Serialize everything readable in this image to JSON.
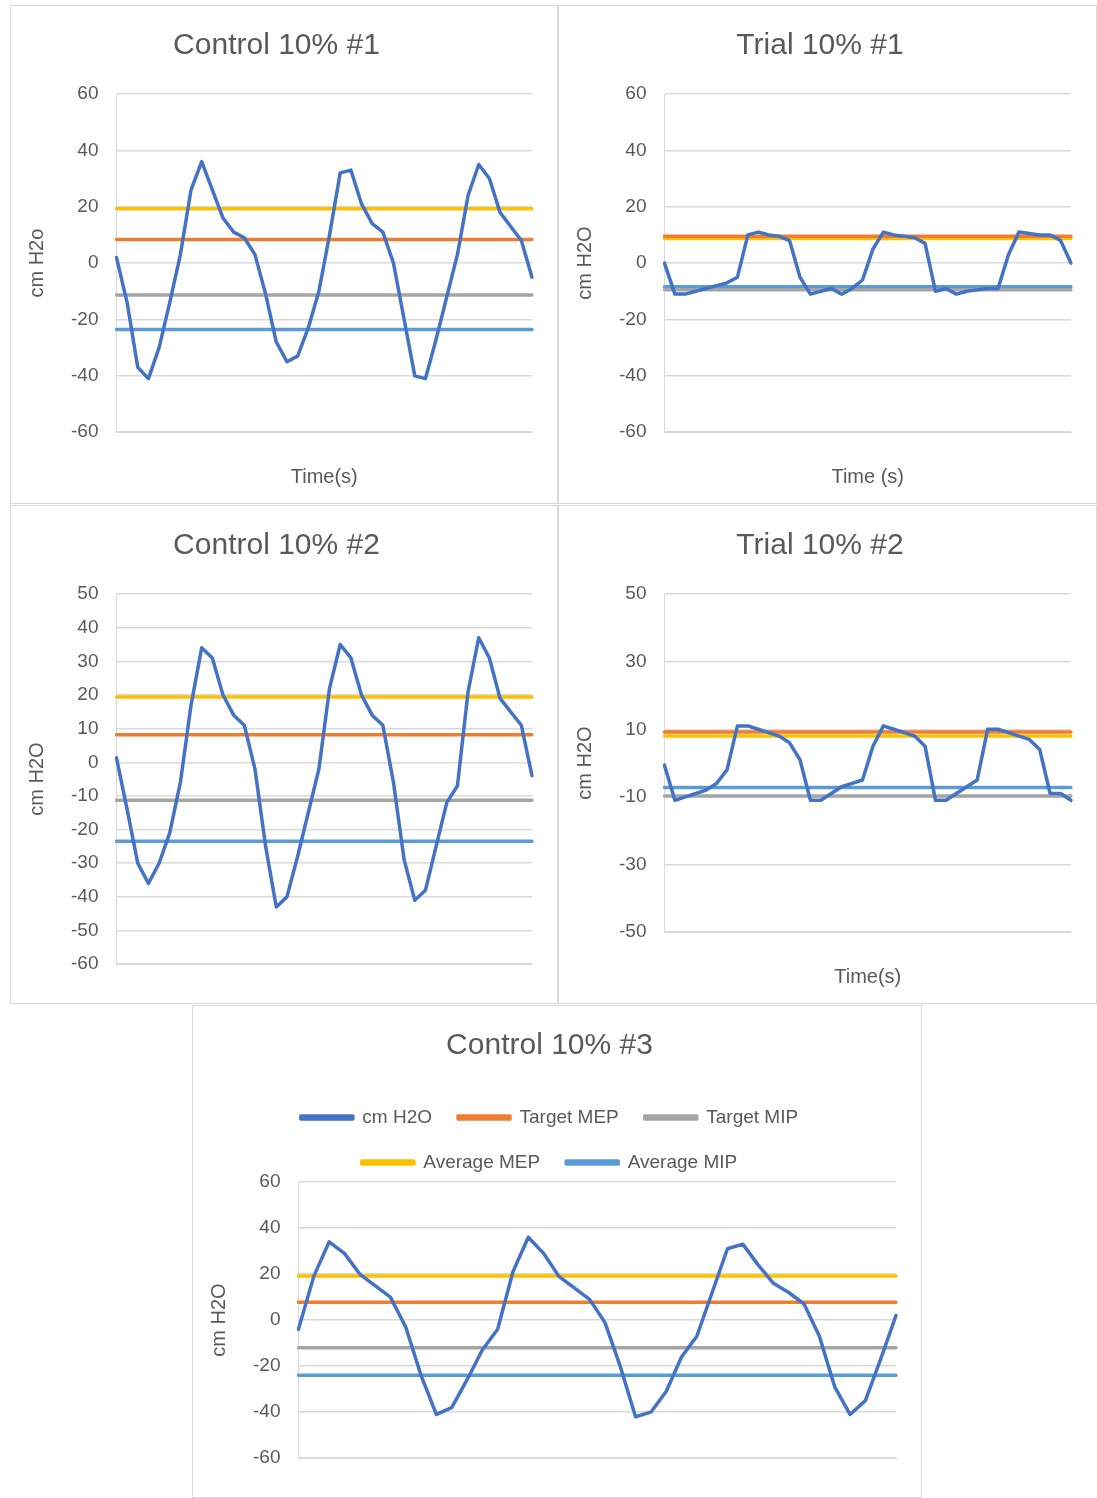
{
  "chart_data": [
    {
      "type": "line",
      "title": "Control 10% #1",
      "xlabel": "Time(s)",
      "ylabel": "cm H2o",
      "ylim": [
        -60,
        60
      ],
      "yticks": [
        -60,
        -40,
        -20,
        0,
        20,
        40,
        60
      ],
      "grid": "y",
      "legend": false,
      "categories": [
        null,
        null,
        null,
        null,
        null,
        null,
        null,
        null,
        null,
        null,
        null,
        null,
        null,
        null,
        null,
        null,
        null,
        null,
        null,
        null,
        null,
        null,
        null,
        null,
        null,
        null,
        null,
        null,
        null,
        null,
        null,
        null,
        null,
        null,
        null,
        null,
        null,
        null,
        null,
        null
      ],
      "series": [
        {
          "color": "#4472c4",
          "values": [
            2,
            -14,
            -37,
            -41,
            -30,
            -14,
            3,
            26,
            36,
            26,
            16,
            11,
            9,
            3,
            -11,
            -28,
            -35,
            -33,
            -23,
            -10,
            10,
            32,
            33,
            21,
            14,
            11,
            0,
            -20,
            -40,
            -41,
            -27,
            -12,
            3,
            24,
            35,
            30,
            18,
            13,
            8,
            -5
          ]
        },
        {
          "color": "#ed7d31",
          "values": [
            8.4,
            8.4,
            8.4,
            8.4,
            8.4,
            8.4,
            8.4,
            8.4,
            8.4,
            8.4,
            8.4,
            8.4,
            8.4,
            8.4,
            8.4,
            8.4,
            8.4,
            8.4,
            8.4,
            8.4,
            8.4,
            8.4,
            8.4,
            8.4,
            8.4,
            8.4,
            8.4,
            8.4,
            8.4,
            8.4,
            8.4,
            8.4,
            8.4,
            8.4,
            8.4,
            8.4,
            8.4,
            8.4,
            8.4,
            8.4
          ]
        },
        {
          "color": "#a5a5a5",
          "values": [
            -11.3,
            -11.3,
            -11.3,
            -11.3,
            -11.3,
            -11.3,
            -11.3,
            -11.3,
            -11.3,
            -11.3,
            -11.3,
            -11.3,
            -11.3,
            -11.3,
            -11.3,
            -11.3,
            -11.3,
            -11.3,
            -11.3,
            -11.3,
            -11.3,
            -11.3,
            -11.3,
            -11.3,
            -11.3,
            -11.3,
            -11.3,
            -11.3,
            -11.3,
            -11.3,
            -11.3,
            -11.3,
            -11.3,
            -11.3,
            -11.3,
            -11.3,
            -11.3,
            -11.3,
            -11.3,
            -11.3
          ]
        },
        {
          "color": "#ffc000",
          "values": [
            19.3,
            19.3,
            19.3,
            19.3,
            19.3,
            19.3,
            19.3,
            19.3,
            19.3,
            19.3,
            19.3,
            19.3,
            19.3,
            19.3,
            19.3,
            19.3,
            19.3,
            19.3,
            19.3,
            19.3,
            19.3,
            19.3,
            19.3,
            19.3,
            19.3,
            19.3,
            19.3,
            19.3,
            19.3,
            19.3,
            19.3,
            19.3,
            19.3,
            19.3,
            19.3,
            19.3,
            19.3,
            19.3,
            19.3,
            19.3
          ]
        },
        {
          "color": "#5b9bd5",
          "values": [
            -23.6,
            -23.6,
            -23.6,
            -23.6,
            -23.6,
            -23.6,
            -23.6,
            -23.6,
            -23.6,
            -23.6,
            -23.6,
            -23.6,
            -23.6,
            -23.6,
            -23.6,
            -23.6,
            -23.6,
            -23.6,
            -23.6,
            -23.6,
            -23.6,
            -23.6,
            -23.6,
            -23.6,
            -23.6,
            -23.6,
            -23.6,
            -23.6,
            -23.6,
            -23.6,
            -23.6,
            -23.6,
            -23.6,
            -23.6,
            -23.6,
            -23.6,
            -23.6,
            -23.6,
            -23.6,
            -23.6
          ]
        }
      ]
    },
    {
      "type": "line",
      "title": "Trial 10% #1",
      "xlabel": "Time (s)",
      "ylabel": "cm H2O",
      "ylim": [
        -60,
        60
      ],
      "yticks": [
        -60,
        -40,
        -20,
        0,
        20,
        40,
        60
      ],
      "grid": "y",
      "legend": false,
      "categories": [
        null,
        null,
        null,
        null,
        null,
        null,
        null,
        null,
        null,
        null,
        null,
        null,
        null,
        null,
        null,
        null,
        null,
        null,
        null,
        null,
        null,
        null,
        null,
        null,
        null,
        null,
        null,
        null,
        null,
        null,
        null,
        null,
        null,
        null,
        null,
        null,
        null,
        null,
        null,
        null
      ],
      "series": [
        {
          "color": "#4472c4",
          "values": [
            0,
            -11,
            -11,
            -10,
            -9,
            -8,
            -7,
            -5,
            10,
            11,
            10,
            9.5,
            8,
            -5,
            -11,
            -10,
            -9,
            -11,
            -9,
            -6,
            5,
            11,
            10,
            9.5,
            9,
            7,
            -10,
            -9,
            -11,
            -10,
            -9.5,
            -9,
            -9,
            3,
            11,
            10.5,
            10,
            10,
            8,
            0
          ]
        },
        {
          "color": "#ed7d31",
          "values": [
            9.5,
            9.5,
            9.5,
            9.5,
            9.5,
            9.5,
            9.5,
            9.5,
            9.5,
            9.5,
            9.5,
            9.5,
            9.5,
            9.5,
            9.5,
            9.5,
            9.5,
            9.5,
            9.5,
            9.5,
            9.5,
            9.5,
            9.5,
            9.5,
            9.5,
            9.5,
            9.5,
            9.5,
            9.5,
            9.5,
            9.5,
            9.5,
            9.5,
            9.5,
            9.5,
            9.5,
            9.5,
            9.5,
            9.5,
            9.5
          ]
        },
        {
          "color": "#a5a5a5",
          "values": [
            -9.5,
            -9.5,
            -9.5,
            -9.5,
            -9.5,
            -9.5,
            -9.5,
            -9.5,
            -9.5,
            -9.5,
            -9.5,
            -9.5,
            -9.5,
            -9.5,
            -9.5,
            -9.5,
            -9.5,
            -9.5,
            -9.5,
            -9.5,
            -9.5,
            -9.5,
            -9.5,
            -9.5,
            -9.5,
            -9.5,
            -9.5,
            -9.5,
            -9.5,
            -9.5,
            -9.5,
            -9.5,
            -9.5,
            -9.5,
            -9.5,
            -9.5,
            -9.5,
            -9.5,
            -9.5,
            -9.5
          ]
        },
        {
          "color": "#ffc000",
          "values": [
            8.7,
            8.7,
            8.7,
            8.7,
            8.7,
            8.7,
            8.7,
            8.7,
            8.7,
            8.7,
            8.7,
            8.7,
            8.7,
            8.7,
            8.7,
            8.7,
            8.7,
            8.7,
            8.7,
            8.7,
            8.7,
            8.7,
            8.7,
            8.7,
            8.7,
            8.7,
            8.7,
            8.7,
            8.7,
            8.7,
            8.7,
            8.7,
            8.7,
            8.7,
            8.7,
            8.7,
            8.7,
            8.7,
            8.7,
            8.7
          ]
        },
        {
          "color": "#5b9bd5",
          "values": [
            -8.4,
            -8.4,
            -8.4,
            -8.4,
            -8.4,
            -8.4,
            -8.4,
            -8.4,
            -8.4,
            -8.4,
            -8.4,
            -8.4,
            -8.4,
            -8.4,
            -8.4,
            -8.4,
            -8.4,
            -8.4,
            -8.4,
            -8.4,
            -8.4,
            -8.4,
            -8.4,
            -8.4,
            -8.4,
            -8.4,
            -8.4,
            -8.4,
            -8.4,
            -8.4,
            -8.4,
            -8.4,
            -8.4,
            -8.4,
            -8.4,
            -8.4,
            -8.4,
            -8.4,
            -8.4,
            -8.4
          ]
        }
      ]
    },
    {
      "type": "line",
      "title": "Control 10% #2",
      "ylabel": "cm H2O",
      "ylim": [
        -60,
        50
      ],
      "yticks": [
        -60,
        -50,
        -40,
        -30,
        -20,
        -10,
        0,
        10,
        20,
        30,
        40,
        50
      ],
      "grid": "y",
      "legend": false,
      "categories": [
        null,
        null,
        null,
        null,
        null,
        null,
        null,
        null,
        null,
        null,
        null,
        null,
        null,
        null,
        null,
        null,
        null,
        null,
        null,
        null,
        null,
        null,
        null,
        null,
        null,
        null,
        null,
        null,
        null,
        null,
        null,
        null,
        null,
        null,
        null,
        null,
        null,
        null,
        null,
        null
      ],
      "series": [
        {
          "color": "#4472c4",
          "values": [
            1.3,
            -14,
            -30,
            -36,
            -30,
            -21,
            -6,
            17,
            34,
            31,
            20,
            14,
            11,
            -2,
            -25,
            -43,
            -40,
            -28,
            -15,
            -2,
            22,
            35,
            31,
            20,
            14,
            11,
            -6,
            -29,
            -41,
            -38,
            -25,
            -12,
            -7,
            21,
            37,
            31,
            19,
            15,
            11,
            -4
          ]
        },
        {
          "color": "#ed7d31",
          "values": [
            8.2,
            8.2,
            8.2,
            8.2,
            8.2,
            8.2,
            8.2,
            8.2,
            8.2,
            8.2,
            8.2,
            8.2,
            8.2,
            8.2,
            8.2,
            8.2,
            8.2,
            8.2,
            8.2,
            8.2,
            8.2,
            8.2,
            8.2,
            8.2,
            8.2,
            8.2,
            8.2,
            8.2,
            8.2,
            8.2,
            8.2,
            8.2,
            8.2,
            8.2,
            8.2,
            8.2,
            8.2,
            8.2,
            8.2,
            8.2
          ]
        },
        {
          "color": "#a5a5a5",
          "values": [
            -11.3,
            -11.3,
            -11.3,
            -11.3,
            -11.3,
            -11.3,
            -11.3,
            -11.3,
            -11.3,
            -11.3,
            -11.3,
            -11.3,
            -11.3,
            -11.3,
            -11.3,
            -11.3,
            -11.3,
            -11.3,
            -11.3,
            -11.3,
            -11.3,
            -11.3,
            -11.3,
            -11.3,
            -11.3,
            -11.3,
            -11.3,
            -11.3,
            -11.3,
            -11.3,
            -11.3,
            -11.3,
            -11.3,
            -11.3,
            -11.3,
            -11.3,
            -11.3,
            -11.3,
            -11.3,
            -11.3
          ]
        },
        {
          "color": "#ffc000",
          "values": [
            19.4,
            19.4,
            19.4,
            19.4,
            19.4,
            19.4,
            19.4,
            19.4,
            19.4,
            19.4,
            19.4,
            19.4,
            19.4,
            19.4,
            19.4,
            19.4,
            19.4,
            19.4,
            19.4,
            19.4,
            19.4,
            19.4,
            19.4,
            19.4,
            19.4,
            19.4,
            19.4,
            19.4,
            19.4,
            19.4,
            19.4,
            19.4,
            19.4,
            19.4,
            19.4,
            19.4,
            19.4,
            19.4,
            19.4,
            19.4
          ]
        },
        {
          "color": "#5b9bd5",
          "values": [
            -23.5,
            -23.5,
            -23.5,
            -23.5,
            -23.5,
            -23.5,
            -23.5,
            -23.5,
            -23.5,
            -23.5,
            -23.5,
            -23.5,
            -23.5,
            -23.5,
            -23.5,
            -23.5,
            -23.5,
            -23.5,
            -23.5,
            -23.5,
            -23.5,
            -23.5,
            -23.5,
            -23.5,
            -23.5,
            -23.5,
            -23.5,
            -23.5,
            -23.5,
            -23.5,
            -23.5,
            -23.5,
            -23.5,
            -23.5,
            -23.5,
            -23.5,
            -23.5,
            -23.5,
            -23.5,
            -23.5
          ]
        }
      ]
    },
    {
      "type": "line",
      "title": "Trial 10% #2",
      "xlabel": "Time(s)",
      "ylabel": "cm H2O",
      "ylim": [
        -50,
        50
      ],
      "yticks": [
        -50,
        -30,
        -10,
        10,
        30,
        50
      ],
      "grid": "y",
      "legend": false,
      "categories": [
        null,
        null,
        null,
        null,
        null,
        null,
        null,
        null,
        null,
        null,
        null,
        null,
        null,
        null,
        null,
        null,
        null,
        null,
        null,
        null,
        null,
        null,
        null,
        null,
        null,
        null,
        null,
        null,
        null,
        null,
        null,
        null,
        null,
        null,
        null,
        null,
        null,
        null,
        null,
        null
      ],
      "series": [
        {
          "color": "#4472c4",
          "values": [
            -0.6,
            -11,
            -10,
            -9,
            -8,
            -6,
            -2,
            11,
            11,
            10,
            9,
            8,
            6,
            1,
            -11,
            -11,
            -9,
            -7,
            -6,
            -5,
            5,
            11,
            10,
            9,
            8,
            5,
            -11,
            -11,
            -9,
            -7,
            -5,
            10,
            10,
            9,
            8,
            7,
            4,
            -9,
            -9,
            -11
          ]
        },
        {
          "color": "#ed7d31",
          "values": [
            9.2,
            9.2,
            9.2,
            9.2,
            9.2,
            9.2,
            9.2,
            9.2,
            9.2,
            9.2,
            9.2,
            9.2,
            9.2,
            9.2,
            9.2,
            9.2,
            9.2,
            9.2,
            9.2,
            9.2,
            9.2,
            9.2,
            9.2,
            9.2,
            9.2,
            9.2,
            9.2,
            9.2,
            9.2,
            9.2,
            9.2,
            9.2,
            9.2,
            9.2,
            9.2,
            9.2,
            9.2,
            9.2,
            9.2,
            9.2
          ]
        },
        {
          "color": "#a5a5a5",
          "values": [
            -9.7,
            -9.7,
            -9.7,
            -9.7,
            -9.7,
            -9.7,
            -9.7,
            -9.7,
            -9.7,
            -9.7,
            -9.7,
            -9.7,
            -9.7,
            -9.7,
            -9.7,
            -9.7,
            -9.7,
            -9.7,
            -9.7,
            -9.7,
            -9.7,
            -9.7,
            -9.7,
            -9.7,
            -9.7,
            -9.7,
            -9.7,
            -9.7,
            -9.7,
            -9.7,
            -9.7,
            -9.7,
            -9.7,
            -9.7,
            -9.7,
            -9.7,
            -9.7,
            -9.7,
            -9.7,
            -9.7
          ]
        },
        {
          "color": "#ffc000",
          "values": [
            8,
            8,
            8,
            8,
            8,
            8,
            8,
            8,
            8,
            8,
            8,
            8,
            8,
            8,
            8,
            8,
            8,
            8,
            8,
            8,
            8,
            8,
            8,
            8,
            8,
            8,
            8,
            8,
            8,
            8,
            8,
            8,
            8,
            8,
            8,
            8,
            8,
            8,
            8,
            8
          ]
        },
        {
          "color": "#5b9bd5",
          "values": [
            -7.2,
            -7.2,
            -7.2,
            -7.2,
            -7.2,
            -7.2,
            -7.2,
            -7.2,
            -7.2,
            -7.2,
            -7.2,
            -7.2,
            -7.2,
            -7.2,
            -7.2,
            -7.2,
            -7.2,
            -7.2,
            -7.2,
            -7.2,
            -7.2,
            -7.2,
            -7.2,
            -7.2,
            -7.2,
            -7.2,
            -7.2,
            -7.2,
            -7.2,
            -7.2,
            -7.2,
            -7.2,
            -7.2,
            -7.2,
            -7.2,
            -7.2,
            -7.2,
            -7.2,
            -7.2,
            -7.2
          ]
        }
      ]
    },
    {
      "type": "line",
      "title": "Control 10% #3",
      "ylabel": "cm H2O",
      "ylim": [
        -60,
        60
      ],
      "yticks": [
        -60,
        -40,
        -20,
        0,
        20,
        40,
        60
      ],
      "grid": "y",
      "legend": "top",
      "categories": [
        null,
        null,
        null,
        null,
        null,
        null,
        null,
        null,
        null,
        null,
        null,
        null,
        null,
        null,
        null,
        null,
        null,
        null,
        null,
        null,
        null,
        null,
        null,
        null,
        null,
        null,
        null,
        null,
        null,
        null,
        null,
        null,
        null,
        null,
        null,
        null,
        null,
        null,
        null,
        null
      ],
      "series": [
        {
          "name": "cm H2O",
          "color": "#4472c4",
          "values": [
            -4,
            19,
            34,
            29,
            20,
            15,
            10,
            -3,
            -24,
            -41,
            -38,
            -26,
            -13,
            -4,
            21,
            36,
            29,
            19,
            14,
            9,
            -1,
            -20,
            -42,
            -40,
            -31,
            -16,
            -7,
            12,
            31,
            33,
            24,
            16,
            12,
            7,
            -7,
            -29,
            -41,
            -35,
            -17,
            2
          ]
        },
        {
          "name": "Target MEP",
          "color": "#ed7d31",
          "values": [
            7.8,
            7.8,
            7.8,
            7.8,
            7.8,
            7.8,
            7.8,
            7.8,
            7.8,
            7.8,
            7.8,
            7.8,
            7.8,
            7.8,
            7.8,
            7.8,
            7.8,
            7.8,
            7.8,
            7.8,
            7.8,
            7.8,
            7.8,
            7.8,
            7.8,
            7.8,
            7.8,
            7.8,
            7.8,
            7.8,
            7.8,
            7.8,
            7.8,
            7.8,
            7.8,
            7.8,
            7.8,
            7.8,
            7.8,
            7.8
          ]
        },
        {
          "name": "Target MIP",
          "color": "#a5a5a5",
          "values": [
            -12,
            -12,
            -12,
            -12,
            -12,
            -12,
            -12,
            -12,
            -12,
            -12,
            -12,
            -12,
            -12,
            -12,
            -12,
            -12,
            -12,
            -12,
            -12,
            -12,
            -12,
            -12,
            -12,
            -12,
            -12,
            -12,
            -12,
            -12,
            -12,
            -12,
            -12,
            -12,
            -12,
            -12,
            -12,
            -12,
            -12,
            -12,
            -12,
            -12
          ]
        },
        {
          "name": "Average MEP",
          "color": "#ffc000",
          "values": [
            19.2,
            19.2,
            19.2,
            19.2,
            19.2,
            19.2,
            19.2,
            19.2,
            19.2,
            19.2,
            19.2,
            19.2,
            19.2,
            19.2,
            19.2,
            19.2,
            19.2,
            19.2,
            19.2,
            19.2,
            19.2,
            19.2,
            19.2,
            19.2,
            19.2,
            19.2,
            19.2,
            19.2,
            19.2,
            19.2,
            19.2,
            19.2,
            19.2,
            19.2,
            19.2,
            19.2,
            19.2,
            19.2,
            19.2,
            19.2
          ]
        },
        {
          "name": "Average MIP",
          "color": "#5b9bd5",
          "values": [
            -24,
            -24,
            -24,
            -24,
            -24,
            -24,
            -24,
            -24,
            -24,
            -24,
            -24,
            -24,
            -24,
            -24,
            -24,
            -24,
            -24,
            -24,
            -24,
            -24,
            -24,
            -24,
            -24,
            -24,
            -24,
            -24,
            -24,
            -24,
            -24,
            -24,
            -24,
            -24,
            -24,
            -24,
            -24,
            -24,
            -24,
            -24,
            -24,
            -24
          ]
        }
      ]
    }
  ]
}
